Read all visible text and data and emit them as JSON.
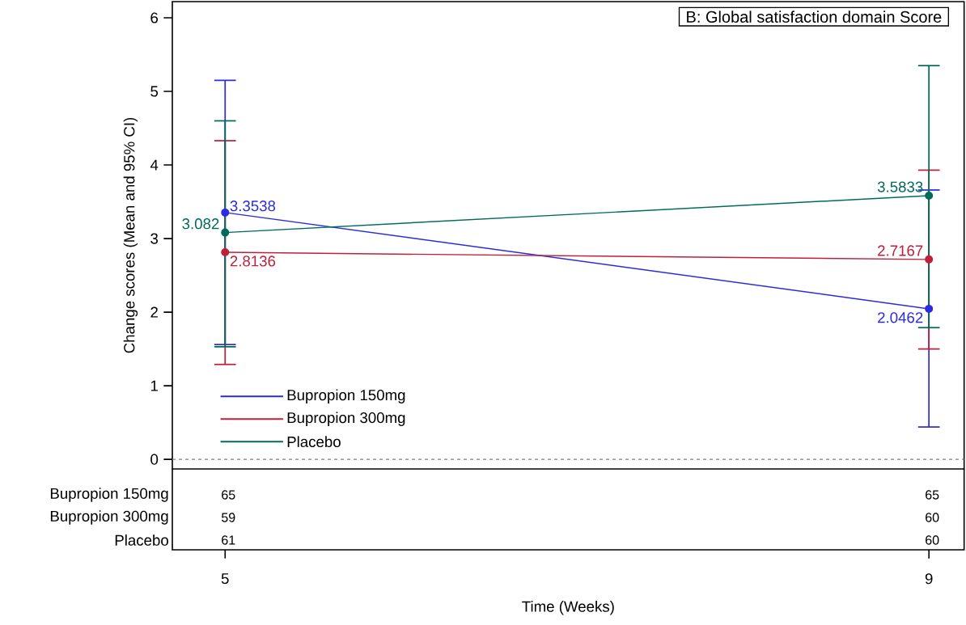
{
  "chart_data": {
    "type": "line",
    "title": "B: Global satisfaction domain Score",
    "xlabel": "Time (Weeks)",
    "ylabel": "Change scores (Mean and 95% CI)",
    "x": [
      5,
      9
    ],
    "xlim": [
      4.7,
      9.2
    ],
    "xticks": [
      5,
      9
    ],
    "ylim": [
      -0.13,
      6.22
    ],
    "yticks": [
      0,
      1,
      2,
      3,
      4,
      5,
      6
    ],
    "series": [
      {
        "name": "Bupropion 150mg",
        "color": "#2b2be0",
        "values": [
          3.3538,
          2.0462
        ],
        "errors": [
          [
            1.56,
            5.15
          ],
          [
            0.44,
            3.66
          ]
        ]
      },
      {
        "name": "Bupropion 300mg",
        "color": "#c01f3a",
        "values": [
          2.8136,
          2.7167
        ],
        "errors": [
          [
            1.29,
            4.33
          ],
          [
            1.5,
            3.93
          ]
        ]
      },
      {
        "name": "Placebo",
        "color": "#006b5a",
        "values": [
          3.082,
          3.5833
        ],
        "errors": [
          [
            1.53,
            4.6
          ],
          [
            1.79,
            5.35
          ]
        ]
      }
    ],
    "data_labels": true,
    "marker": "circle",
    "line_style": "solid",
    "legend": "bottom left",
    "grid": false,
    "ref_lines": [
      {
        "axis": "y",
        "value": 0,
        "color": "#808080",
        "line_style": "dashed"
      }
    ],
    "annotations": [
      "65",
      "65",
      "59",
      "60",
      "61",
      "60"
    ]
  }
}
